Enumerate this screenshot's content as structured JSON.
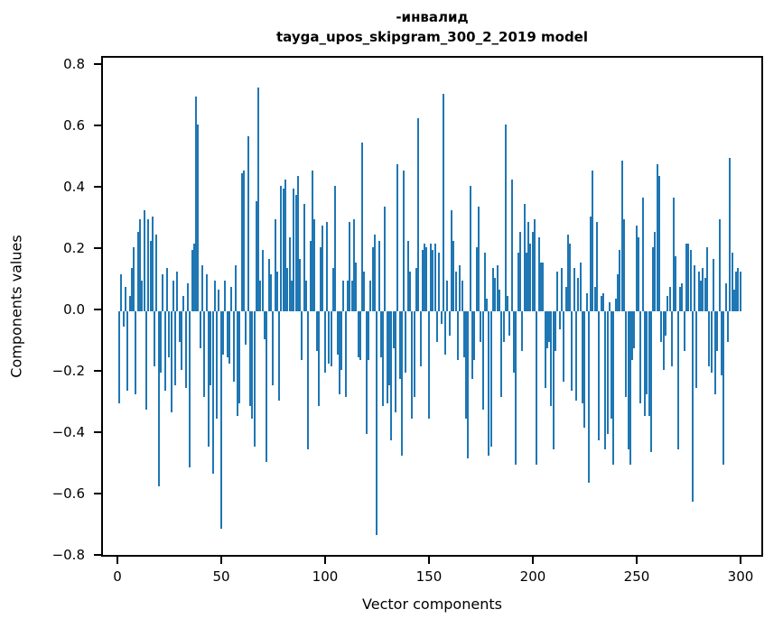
{
  "figure": {
    "title_line1": "-инвалид",
    "title_line2": "tayga_upos_skipgram_300_2_2019 model",
    "xlabel": "Vector components",
    "ylabel": "Components values"
  },
  "chart_data": {
    "type": "bar",
    "title": "-инвалид — tayga_upos_skipgram_300_2_2019 model",
    "xlabel": "Vector components",
    "ylabel": "Components values",
    "legend": "none",
    "grid": false,
    "bar_color": "#1f77b4",
    "axis_color": "#000000",
    "xlim": [
      -8,
      311
    ],
    "ylim": [
      -0.81,
      0.83
    ],
    "x_ticks": [
      0,
      50,
      100,
      150,
      200,
      250,
      300
    ],
    "y_ticks": [
      0.8,
      0.6,
      0.4,
      0.2,
      0.0,
      -0.2,
      -0.4,
      -0.6,
      -0.8
    ],
    "n_components": 300,
    "values": [
      -0.3,
      0.12,
      -0.05,
      0.08,
      -0.26,
      0.05,
      0.14,
      0.21,
      -0.27,
      0.26,
      0.3,
      0.1,
      0.33,
      -0.32,
      0.3,
      0.23,
      0.31,
      -0.18,
      0.25,
      -0.57,
      -0.2,
      0.12,
      -0.26,
      0.14,
      -0.15,
      -0.33,
      0.1,
      -0.24,
      0.13,
      -0.1,
      -0.19,
      0.05,
      -0.25,
      0.09,
      -0.51,
      0.2,
      0.22,
      0.7,
      0.61,
      -0.12,
      0.15,
      -0.28,
      0.12,
      -0.44,
      -0.24,
      -0.53,
      0.1,
      -0.35,
      0.07,
      -0.71,
      -0.14,
      0.1,
      -0.15,
      -0.17,
      0.08,
      -0.23,
      0.15,
      -0.34,
      -0.3,
      0.45,
      0.46,
      -0.11,
      0.57,
      -0.31,
      -0.35,
      -0.44,
      0.36,
      0.73,
      0.1,
      0.2,
      -0.09,
      -0.49,
      0.17,
      0.12,
      -0.24,
      0.3,
      0.13,
      -0.29,
      0.41,
      0.4,
      0.43,
      0.14,
      0.24,
      0.1,
      0.4,
      0.38,
      0.44,
      0.17,
      -0.16,
      0.35,
      0.1,
      -0.45,
      0.23,
      0.46,
      0.3,
      -0.13,
      -0.31,
      0.21,
      0.28,
      -0.2,
      0.29,
      -0.17,
      -0.18,
      0.14,
      0.41,
      -0.14,
      -0.27,
      -0.19,
      0.1,
      -0.28,
      0.1,
      0.29,
      0.1,
      0.3,
      0.16,
      -0.15,
      -0.16,
      0.55,
      0.13,
      -0.4,
      -0.16,
      0.1,
      0.21,
      0.25,
      -0.73,
      0.23,
      -0.15,
      -0.31,
      0.34,
      -0.3,
      -0.24,
      -0.42,
      -0.12,
      -0.33,
      0.48,
      -0.22,
      -0.47,
      0.46,
      -0.2,
      0.23,
      0.13,
      -0.35,
      -0.28,
      0.14,
      0.63,
      -0.18,
      0.2,
      0.22,
      0.21,
      -0.35,
      0.22,
      0.2,
      0.22,
      -0.1,
      0.19,
      -0.04,
      0.71,
      -0.14,
      0.1,
      -0.08,
      0.33,
      0.23,
      0.13,
      -0.16,
      0.15,
      0.1,
      -0.15,
      -0.35,
      -0.48,
      0.41,
      -0.22,
      -0.16,
      0.21,
      0.34,
      -0.1,
      -0.32,
      0.19,
      0.04,
      -0.47,
      -0.44,
      0.14,
      0.11,
      0.15,
      0.07,
      -0.28,
      -0.1,
      0.61,
      0.05,
      -0.08,
      0.43,
      -0.2,
      -0.5,
      0.19,
      0.26,
      -0.13,
      0.35,
      0.19,
      0.29,
      0.22,
      0.26,
      0.3,
      -0.5,
      0.24,
      0.16,
      0.16,
      -0.25,
      -0.12,
      -0.1,
      -0.31,
      -0.45,
      -0.13,
      0.13,
      -0.06,
      0.14,
      -0.23,
      0.08,
      0.25,
      0.22,
      -0.26,
      0.14,
      -0.29,
      0.11,
      0.16,
      -0.3,
      -0.38,
      0.06,
      -0.56,
      0.31,
      0.46,
      0.08,
      0.29,
      -0.42,
      0.05,
      0.06,
      -0.45,
      -0.4,
      0.03,
      -0.35,
      -0.5,
      0.04,
      0.12,
      0.2,
      0.49,
      0.3,
      -0.28,
      -0.45,
      -0.5,
      -0.16,
      -0.12,
      0.28,
      0.24,
      -0.3,
      0.37,
      -0.34,
      -0.27,
      -0.34,
      -0.46,
      0.21,
      0.26,
      0.48,
      0.44,
      -0.1,
      -0.19,
      -0.08,
      0.05,
      0.08,
      -0.18,
      0.37,
      0.18,
      -0.45,
      0.08,
      0.09,
      -0.13,
      0.22,
      0.22,
      0.2,
      -0.62,
      0.15,
      -0.25,
      0.13,
      0.1,
      0.14,
      0.11,
      0.21,
      -0.18,
      -0.2,
      0.17,
      -0.27,
      -0.13,
      0.3,
      -0.21,
      -0.5,
      0.09,
      -0.1,
      0.5,
      0.19,
      0.07,
      0.13,
      0.14,
      0.13
    ]
  }
}
